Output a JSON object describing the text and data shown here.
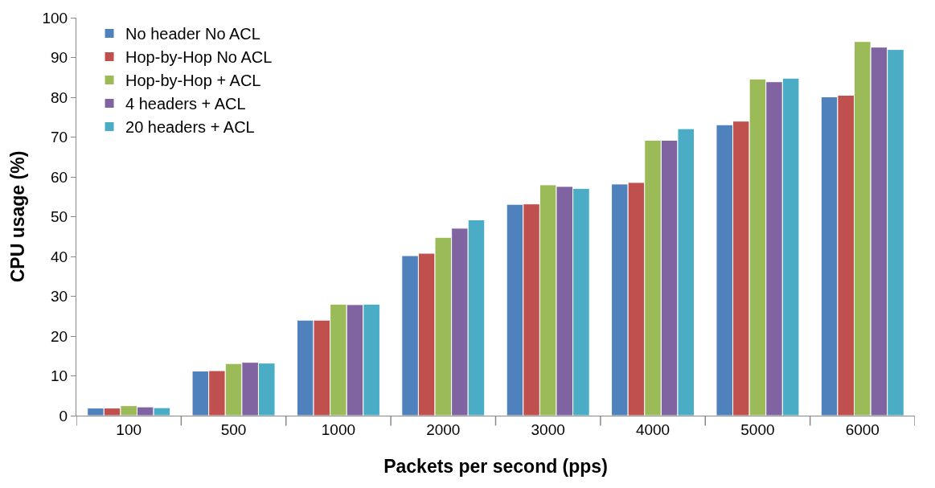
{
  "chart_data": {
    "type": "bar",
    "xlabel": "Packets per second (pps)",
    "ylabel": "CPU usage (%)",
    "categories": [
      "100",
      "500",
      "1000",
      "2000",
      "3000",
      "4000",
      "5000",
      "6000"
    ],
    "series": [
      {
        "name": "No header No ACL",
        "color": "#4f81bd",
        "values": [
          1.9,
          11.2,
          24,
          40.2,
          53.1,
          58.2,
          73.1,
          80.1
        ]
      },
      {
        "name": "Hop-by-Hop No ACL",
        "color": "#c0504d",
        "values": [
          1.9,
          11.3,
          24,
          40.8,
          53.2,
          58.6,
          74,
          80.5
        ]
      },
      {
        "name": "Hop-by-Hop + ACL",
        "color": "#9bbb59",
        "values": [
          2.5,
          13.1,
          28,
          44.8,
          58,
          69.2,
          84.6,
          94
        ]
      },
      {
        "name": "4 headers + ACL",
        "color": "#8064a2",
        "values": [
          2.2,
          13.4,
          27.9,
          47.1,
          57.6,
          69.2,
          83.9,
          92.6
        ]
      },
      {
        "name": "20 headers + ACL",
        "color": "#4bacc6",
        "values": [
          2.0,
          13.2,
          28,
          49.2,
          57.1,
          72.1,
          84.8,
          92
        ]
      }
    ],
    "ylim": [
      0,
      100
    ],
    "yticks": [
      0,
      10,
      20,
      30,
      40,
      50,
      60,
      70,
      80,
      90,
      100
    ],
    "grid": false,
    "legend": "top"
  }
}
